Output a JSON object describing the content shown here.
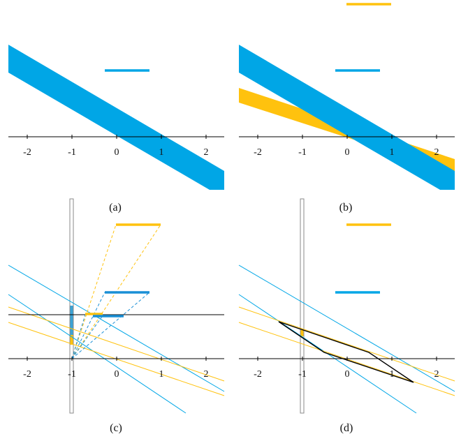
{
  "panels": [
    {
      "id": "a",
      "caption": "(a)"
    },
    {
      "id": "b",
      "caption": "(b)"
    },
    {
      "id": "c",
      "caption": "(c)"
    },
    {
      "id": "d",
      "caption": "(d)"
    }
  ],
  "axis": {
    "ticks": [
      "-2",
      "-1",
      "0",
      "1",
      "2"
    ]
  },
  "colors": {
    "blue": "#00a6e6",
    "orange": "#ffc20e",
    "black": "#000000",
    "frame": "#8a8a8a"
  }
}
